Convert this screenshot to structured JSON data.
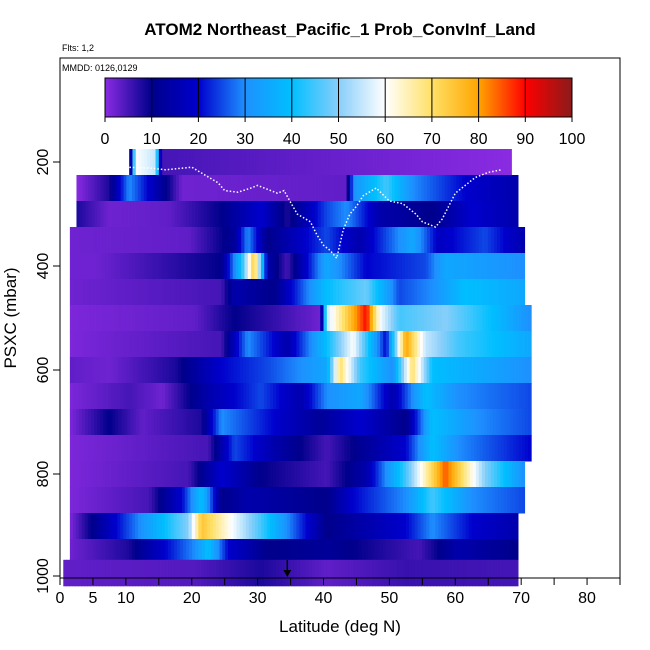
{
  "chart_data": {
    "type": "heatmap",
    "title": "ATOM2 Northeast_Pacific_1 Prob_ConvInf_Land",
    "flights_label": "Flts: 1,2",
    "dates_label": "MMDD: 0126,0129",
    "xlabel": "Latitude (deg N)",
    "ylabel": "PSXC (mbar)",
    "xlim": [
      0,
      85
    ],
    "ylim": [
      1000,
      0
    ],
    "x_ticks": [
      0,
      5,
      10,
      20,
      30,
      40,
      50,
      60,
      70,
      80
    ],
    "x_tick_labels": [
      "0",
      "5",
      "10",
      "20",
      "30",
      "40",
      "50",
      "60",
      "70",
      "80"
    ],
    "y_ticks": [
      200,
      400,
      600,
      800,
      1000
    ],
    "y_tick_labels": [
      "200",
      "400",
      "600",
      "800",
      "1000"
    ],
    "colorbar": {
      "min": 0,
      "max": 100,
      "ticks": [
        0,
        10,
        20,
        30,
        40,
        50,
        60,
        70,
        80,
        90,
        100
      ],
      "tick_labels": [
        "0",
        "10",
        "20",
        "30",
        "40",
        "50",
        "60",
        "70",
        "80",
        "90",
        "100"
      ],
      "colors": [
        "#8A2BE2",
        "#00008B",
        "#0000CD",
        "#1E90FF",
        "#00BFFF",
        "#87CEFA",
        "#FFFFFF",
        "#FFE066",
        "#FFA500",
        "#FF0000",
        "#8B1A1A"
      ]
    },
    "bin_lat_width": 2.5,
    "rows": [
      {
        "p": 200,
        "lat_range": [
          10.5,
          68.5
        ],
        "segments": [
          [
            10.5,
            0
          ],
          [
            11.5,
            60
          ],
          [
            14.5,
            55
          ],
          [
            15.5,
            5
          ],
          [
            68.5,
            0
          ]
        ]
      },
      {
        "p": 250,
        "lat_range": [
          2.5,
          69.5
        ],
        "segments": [
          [
            2.5,
            0
          ],
          [
            7.5,
            8
          ],
          [
            10.5,
            30
          ],
          [
            18.5,
            2
          ],
          [
            43.5,
            3
          ],
          [
            44.5,
            30
          ],
          [
            49.5,
            45
          ],
          [
            53.5,
            30
          ],
          [
            57.5,
            25
          ],
          [
            61.5,
            20
          ],
          [
            69.5,
            15
          ]
        ]
      },
      {
        "p": 300,
        "lat_range": [
          2.5,
          69.5
        ],
        "segments": [
          [
            2.5,
            8
          ],
          [
            7.5,
            2
          ],
          [
            16.5,
            3
          ],
          [
            24.5,
            10
          ],
          [
            30.5,
            20
          ],
          [
            34.5,
            8
          ],
          [
            40.5,
            25
          ],
          [
            43.5,
            30
          ],
          [
            48.5,
            15
          ],
          [
            56.5,
            10
          ],
          [
            62.5,
            20
          ],
          [
            69.5,
            15
          ]
        ]
      },
      {
        "p": 350,
        "lat_range": [
          1.5,
          70.5
        ],
        "segments": [
          [
            1.5,
            2
          ],
          [
            19.5,
            3
          ],
          [
            26.5,
            12
          ],
          [
            28.5,
            30
          ],
          [
            31.5,
            10
          ],
          [
            40.5,
            25
          ],
          [
            45.5,
            15
          ],
          [
            53.5,
            35
          ],
          [
            57.5,
            18
          ],
          [
            64.5,
            25
          ],
          [
            70.5,
            15
          ]
        ]
      },
      {
        "p": 400,
        "lat_range": [
          1.5,
          70.5
        ],
        "segments": [
          [
            1.5,
            2
          ],
          [
            5.5,
            2
          ],
          [
            24.5,
            10
          ],
          [
            27.5,
            40
          ],
          [
            29.5,
            75
          ],
          [
            31.5,
            15
          ],
          [
            34.5,
            5
          ],
          [
            40.5,
            35
          ],
          [
            46.5,
            20
          ],
          [
            55.5,
            25
          ],
          [
            58.5,
            35
          ],
          [
            70.5,
            30
          ]
        ]
      },
      {
        "p": 450,
        "lat_range": [
          1.5,
          70.5
        ],
        "segments": [
          [
            1.5,
            2
          ],
          [
            24.5,
            5
          ],
          [
            26.5,
            15
          ],
          [
            32.5,
            10
          ],
          [
            40.5,
            40
          ],
          [
            46.5,
            48
          ],
          [
            51.5,
            25
          ],
          [
            56.5,
            30
          ],
          [
            61.5,
            40
          ],
          [
            70.5,
            35
          ]
        ]
      },
      {
        "p": 500,
        "lat_range": [
          1.5,
          71.5
        ],
        "segments": [
          [
            1.5,
            1
          ],
          [
            20.5,
            3
          ],
          [
            26.5,
            10
          ],
          [
            39.5,
            2
          ],
          [
            40.5,
            55
          ],
          [
            46.5,
            90
          ],
          [
            48.5,
            60
          ],
          [
            51.5,
            45
          ],
          [
            58.5,
            50
          ],
          [
            65.5,
            40
          ],
          [
            71.5,
            30
          ]
        ]
      },
      {
        "p": 550,
        "lat_range": [
          1.5,
          71.5
        ],
        "segments": [
          [
            1.5,
            1
          ],
          [
            24.5,
            5
          ],
          [
            28.5,
            30
          ],
          [
            34.5,
            15
          ],
          [
            40.5,
            40
          ],
          [
            44.5,
            60
          ],
          [
            49.5,
            20
          ],
          [
            52.5,
            80
          ],
          [
            55.5,
            55
          ],
          [
            60.5,
            45
          ],
          [
            71.5,
            35
          ]
        ]
      },
      {
        "p": 600,
        "lat_range": [
          1.5,
          71.5
        ],
        "segments": [
          [
            1.5,
            3
          ],
          [
            7.5,
            2
          ],
          [
            17.5,
            8
          ],
          [
            24.5,
            20
          ],
          [
            31.5,
            25
          ],
          [
            36.5,
            30
          ],
          [
            40.5,
            35
          ],
          [
            42.5,
            70
          ],
          [
            45.5,
            45
          ],
          [
            50.5,
            30
          ],
          [
            53.5,
            70
          ],
          [
            56.5,
            40
          ],
          [
            71.5,
            30
          ]
        ]
      },
      {
        "p": 650,
        "lat_range": [
          1.5,
          71.5
        ],
        "segments": [
          [
            1.5,
            1
          ],
          [
            10.5,
            5
          ],
          [
            15.5,
            2
          ],
          [
            22.5,
            15
          ],
          [
            30.5,
            25
          ],
          [
            36.5,
            15
          ],
          [
            40.5,
            30
          ],
          [
            45.5,
            35
          ],
          [
            50.5,
            15
          ],
          [
            55.5,
            40
          ],
          [
            60.5,
            30
          ],
          [
            71.5,
            25
          ]
        ]
      },
      {
        "p": 700,
        "lat_range": [
          1.5,
          71.5
        ],
        "segments": [
          [
            1.5,
            1
          ],
          [
            7.5,
            10
          ],
          [
            12.5,
            3
          ],
          [
            21.5,
            8
          ],
          [
            24.5,
            30
          ],
          [
            32.5,
            20
          ],
          [
            39.5,
            12
          ],
          [
            45.5,
            20
          ],
          [
            52.5,
            10
          ],
          [
            56.5,
            40
          ],
          [
            63.5,
            30
          ],
          [
            71.5,
            25
          ]
        ]
      },
      {
        "p": 750,
        "lat_range": [
          1.5,
          71.5
        ],
        "segments": [
          [
            1.5,
            1
          ],
          [
            22.5,
            5
          ],
          [
            26.5,
            25
          ],
          [
            32.5,
            15
          ],
          [
            40.5,
            5
          ],
          [
            44.5,
            10
          ],
          [
            52.5,
            20
          ],
          [
            56.5,
            40
          ],
          [
            60.5,
            30
          ],
          [
            71.5,
            20
          ]
        ]
      },
      {
        "p": 800,
        "lat_range": [
          1.5,
          70.5
        ],
        "segments": [
          [
            1.5,
            1
          ],
          [
            19.5,
            5
          ],
          [
            24.5,
            20
          ],
          [
            30.5,
            10
          ],
          [
            40.5,
            5
          ],
          [
            46.5,
            15
          ],
          [
            52.5,
            45
          ],
          [
            55.5,
            65
          ],
          [
            58.5,
            85
          ],
          [
            64.5,
            50
          ],
          [
            70.5,
            30
          ]
        ]
      },
      {
        "p": 850,
        "lat_range": [
          1.5,
          70.5
        ],
        "segments": [
          [
            1.5,
            1
          ],
          [
            13.5,
            5
          ],
          [
            18.5,
            20
          ],
          [
            21.5,
            40
          ],
          [
            24.5,
            10
          ],
          [
            28.5,
            15
          ],
          [
            40.5,
            10
          ],
          [
            44.5,
            20
          ],
          [
            52.5,
            30
          ],
          [
            56.5,
            45
          ],
          [
            62.5,
            30
          ],
          [
            70.5,
            25
          ]
        ]
      },
      {
        "p": 900,
        "lat_range": [
          1.5,
          69.5
        ],
        "segments": [
          [
            1.5,
            1
          ],
          [
            19.5,
            50
          ],
          [
            21.5,
            75
          ],
          [
            24.5,
            65
          ],
          [
            30.5,
            45
          ],
          [
            34.5,
            30
          ],
          [
            40.5,
            10
          ],
          [
            52.5,
            20
          ],
          [
            56.5,
            30
          ],
          [
            62.5,
            20
          ],
          [
            69.5,
            15
          ]
        ]
      },
      {
        "p": 950,
        "lat_range": [
          1.5,
          69.5
        ],
        "segments": [
          [
            1.5,
            2
          ],
          [
            10.5,
            8
          ],
          [
            20.5,
            30
          ],
          [
            22.5,
            40
          ],
          [
            25.5,
            20
          ],
          [
            31.5,
            10
          ],
          [
            40.5,
            12
          ],
          [
            48.5,
            8
          ],
          [
            54.5,
            5
          ],
          [
            60.5,
            15
          ],
          [
            69.5,
            10
          ]
        ]
      },
      {
        "p": 990,
        "lat_range": [
          0.5,
          69.5
        ],
        "segments": [
          [
            0.5,
            3
          ],
          [
            20.5,
            4
          ],
          [
            30.5,
            8
          ],
          [
            40.5,
            3
          ],
          [
            52.5,
            6
          ],
          [
            69.5,
            5
          ]
        ]
      }
    ],
    "flight_track": [
      [
        10,
        210
      ],
      [
        14,
        212
      ],
      [
        16,
        215
      ],
      [
        20,
        210
      ],
      [
        22,
        225
      ],
      [
        24,
        240
      ],
      [
        25,
        255
      ],
      [
        27,
        258
      ],
      [
        29,
        250
      ],
      [
        30,
        245
      ],
      [
        33,
        260
      ],
      [
        34,
        255
      ],
      [
        36,
        300
      ],
      [
        38,
        315
      ],
      [
        39,
        340
      ],
      [
        40,
        360
      ],
      [
        41,
        370
      ],
      [
        42,
        385
      ],
      [
        43,
        330
      ],
      [
        44,
        300
      ],
      [
        45,
        285
      ],
      [
        46,
        265
      ],
      [
        48,
        250
      ],
      [
        50,
        275
      ],
      [
        52,
        280
      ],
      [
        54,
        300
      ],
      [
        55,
        315
      ],
      [
        57,
        325
      ],
      [
        58,
        310
      ],
      [
        59,
        285
      ],
      [
        60,
        260
      ],
      [
        62,
        240
      ],
      [
        63,
        230
      ],
      [
        65,
        220
      ],
      [
        67,
        215
      ]
    ],
    "arrow_lat": 34.5
  }
}
